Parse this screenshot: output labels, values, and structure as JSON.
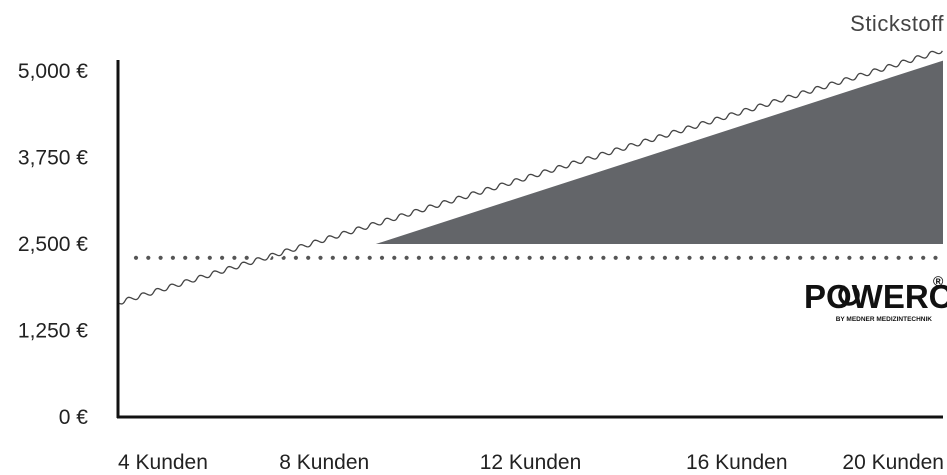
{
  "chart_data": {
    "type": "area",
    "legend": {
      "label": "Stickstoff",
      "position": "top-right"
    },
    "x_ticks": [
      "4 Kunden",
      "8 Kunden",
      "12 Kunden",
      "16 Kunden",
      "20 Kunden"
    ],
    "x_range": [
      4,
      20
    ],
    "y_ticks": [
      "5,000 €",
      "3,750 €",
      "2,500 €",
      "1,250 €",
      "0 €"
    ],
    "y_tick_values": [
      5000,
      3750,
      2500,
      1250,
      0
    ],
    "ylim": [
      0,
      5000
    ],
    "grid": false,
    "series": [
      {
        "name": "Stickstoff",
        "style": "wavy-line",
        "x": [
          4,
          20
        ],
        "y": [
          1650,
          5300
        ]
      }
    ],
    "threshold": {
      "style": "dotted",
      "y": 2300
    },
    "gap_area": {
      "fill": "#636569",
      "x": [
        9,
        20,
        20
      ],
      "y": [
        2500,
        5150,
        2500
      ]
    },
    "colors": {
      "axis": "#111111",
      "area": "#636569",
      "line": "#444444",
      "dots": "#555555"
    }
  },
  "logo": {
    "brand": "POWERCAB",
    "tagline": "BY MEDNER MEDIZINTECHNIK",
    "mark": "®",
    "icon": "power-icon"
  }
}
